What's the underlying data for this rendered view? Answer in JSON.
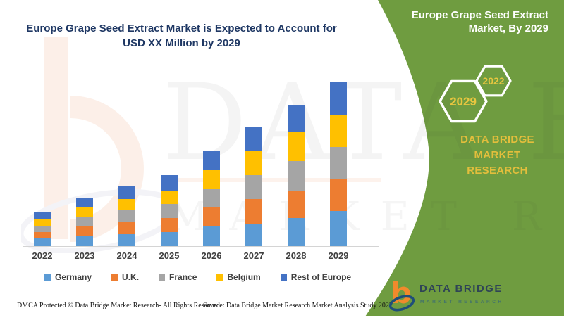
{
  "header": {
    "title_line1": "Europe Grape Seed Extract Market is Expected to Account for",
    "title_line2": "USD XX Million by 2029"
  },
  "chart_data": {
    "type": "bar",
    "stacked": true,
    "title": "Europe Grape Seed Extract Market is Expected to Account for USD XX Million by 2029",
    "xlabel": "",
    "ylabel": "",
    "value_axis_visible": false,
    "grid": false,
    "legend_position": "bottom",
    "units": "relative units (chart labels values only as USD XX Million; heights estimated from pixels)",
    "ylim": [
      0,
      250
    ],
    "categories": [
      "2022",
      "2023",
      "2024",
      "2025",
      "2026",
      "2027",
      "2028",
      "2029"
    ],
    "series": [
      {
        "name": "Germany",
        "color": "#5B9BD5",
        "values": [
          11,
          15,
          17,
          20,
          28,
          31,
          40,
          50
        ]
      },
      {
        "name": "U.K.",
        "color": "#ED7D31",
        "values": [
          9,
          14,
          18,
          20,
          27,
          36,
          39,
          45
        ]
      },
      {
        "name": "France",
        "color": "#A5A5A5",
        "values": [
          9,
          13,
          16,
          20,
          26,
          34,
          42,
          46
        ]
      },
      {
        "name": "Belgium",
        "color": "#FFC000",
        "values": [
          10,
          13,
          16,
          19,
          27,
          34,
          41,
          46
        ]
      },
      {
        "name": "Rest of Europe",
        "color": "#4472C4",
        "values": [
          10,
          13,
          18,
          22,
          27,
          34,
          39,
          47
        ]
      }
    ]
  },
  "side_panel": {
    "background_color": "#6F9C40",
    "title_line1": "Europe Grape Seed Extract",
    "title_line2": "Market, By 2029",
    "hexagons": [
      "2029",
      "2022"
    ],
    "brand_line1": "DATA BRIDGE MARKET",
    "brand_line2": "RESEARCH",
    "accent_text_color": "#E3BE3C"
  },
  "logo": {
    "name": "DATA BRIDGE",
    "subtitle": "MARKET RESEARCH"
  },
  "footer": {
    "left": "DMCA Protected © Data Bridge Market Research- All Rights Reserved.",
    "source": "Source: Data Bridge Market Research Market Analysis Study 2022"
  },
  "watermark": {
    "line1": "DATA BRIDGE",
    "line2": "MARKET RESEARCH"
  }
}
